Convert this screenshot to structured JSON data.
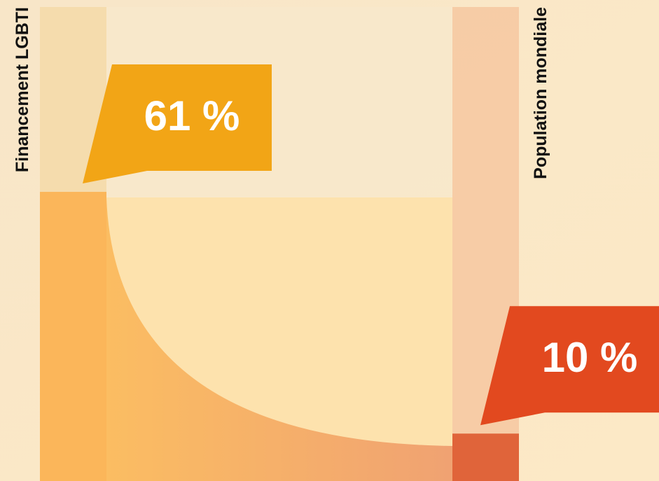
{
  "chart_data": {
    "type": "bar",
    "categories": [
      "Financement LGBTI",
      "Population mondiale"
    ],
    "values": [
      61,
      10
    ],
    "value_labels": [
      "61 %",
      "10 %"
    ],
    "colors": [
      "#fbb65a",
      "#e0643a"
    ],
    "callout_colors": [
      "#f2a516",
      "#e2491f"
    ],
    "ylim": [
      0,
      100
    ]
  }
}
